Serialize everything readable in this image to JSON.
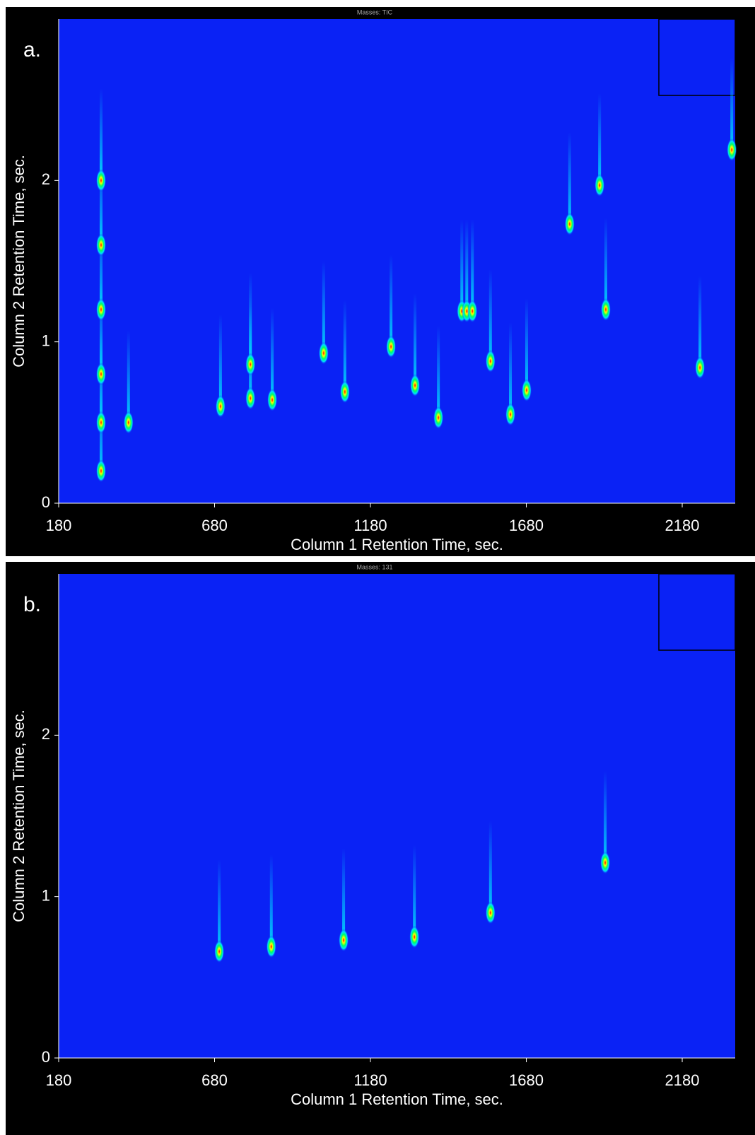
{
  "chart_data": [
    {
      "type": "scatter",
      "panel_label": "a.",
      "title": "Masses: TIC",
      "x_label": "Column 1 Retention Time, sec.",
      "y_label": "Column 2 Retention Time, sec.",
      "xlim": [
        180,
        2350
      ],
      "ylim": [
        0,
        3
      ],
      "xticks": [
        180,
        680,
        1180,
        1680,
        2180
      ],
      "yticks": [
        0,
        1,
        2
      ],
      "colors": [
        "#ff0000",
        "#ffff00",
        "#00ff60",
        "#00e0ff"
      ],
      "series": [
        {
          "x": [
            316,
            316,
            316,
            316,
            316,
            316,
            404,
            699,
            795,
            795,
            865,
            1030,
            1098,
            1246,
            1323,
            1398,
            1473,
            1489,
            1507,
            1565,
            1629,
            1681,
            1819,
            1915,
            1935,
            2237,
            2339
          ],
          "values": [
            0.2,
            0.5,
            0.8,
            1.2,
            1.6,
            2.0,
            0.5,
            0.6,
            0.65,
            0.86,
            0.64,
            0.93,
            0.69,
            0.97,
            0.73,
            0.53,
            1.19,
            1.19,
            1.19,
            0.88,
            0.55,
            0.7,
            1.73,
            1.97,
            1.2,
            0.84,
            2.19
          ]
        }
      ]
    },
    {
      "type": "scatter",
      "panel_label": "b.",
      "title": "Masses: 131",
      "x_label": "Column 1 Retention Time, sec.",
      "y_label": "Column 2 Retention Time, sec.",
      "xlim": [
        180,
        2350
      ],
      "ylim": [
        0,
        3
      ],
      "xticks": [
        180,
        680,
        1180,
        1680,
        2180
      ],
      "yticks": [
        0,
        1,
        2
      ],
      "colors": [
        "#ff0000",
        "#ffff00",
        "#00ff60",
        "#00e0ff"
      ],
      "series": [
        {
          "x": [
            695,
            862,
            1094,
            1321,
            1565,
            1933
          ],
          "values": [
            0.66,
            0.69,
            0.73,
            0.75,
            0.9,
            1.21
          ]
        }
      ]
    }
  ]
}
